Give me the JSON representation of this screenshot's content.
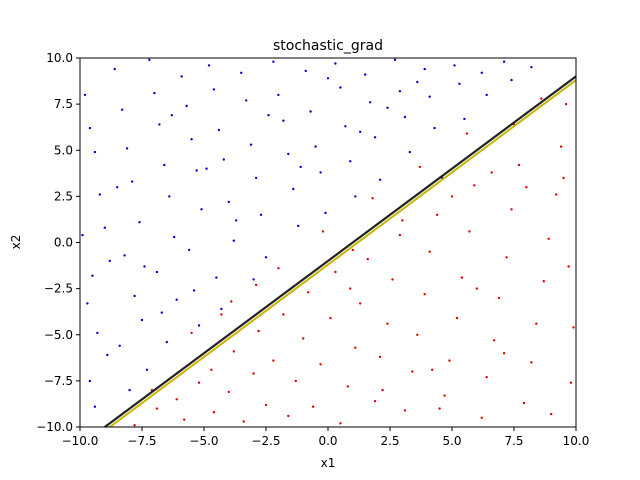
{
  "chart_data": {
    "type": "scatter",
    "title": "stochastic_grad",
    "xlabel": "x1",
    "ylabel": "x2",
    "xlim": [
      -10,
      10
    ],
    "ylim": [
      -10,
      10
    ],
    "xticks": [
      -10,
      -7.5,
      -5,
      -2.5,
      0,
      2.5,
      5,
      7.5,
      10
    ],
    "yticks": [
      -10,
      -7.5,
      -5,
      -2.5,
      0,
      2.5,
      5,
      7.5,
      10
    ],
    "xtick_labels": [
      "−10.0",
      "−7.5",
      "−5.0",
      "−2.5",
      "0.0",
      "2.5",
      "5.0",
      "7.5",
      "10.0"
    ],
    "ytick_labels": [
      "−10.0",
      "−7.5",
      "−5.0",
      "−2.5",
      "0.0",
      "2.5",
      "5.0",
      "7.5",
      "10.0"
    ],
    "grid": false,
    "colors": {
      "class_above": "#0000cc",
      "class_below": "#dd0000",
      "boundary_dark": "#222222",
      "boundary_line": "#c8b400"
    },
    "boundary_lines": [
      {
        "color": "#222222",
        "x1": -9.0,
        "y1": -10.0,
        "x2": 10.0,
        "y2": 9.0
      },
      {
        "color": "#c8b400",
        "x1": -8.8,
        "y1": -10.0,
        "x2": 10.0,
        "y2": 8.8
      }
    ],
    "series": [
      {
        "color": "#0000cc",
        "points": [
          [
            -9.8,
            8.0
          ],
          [
            -9.6,
            6.2
          ],
          [
            -9.4,
            4.9
          ],
          [
            -9.2,
            2.6
          ],
          [
            -9.0,
            0.8
          ],
          [
            -8.8,
            -1.0
          ],
          [
            -9.5,
            -1.8
          ],
          [
            -9.7,
            -3.3
          ],
          [
            -9.3,
            -4.9
          ],
          [
            -8.9,
            -6.1
          ],
          [
            -9.6,
            -7.5
          ],
          [
            -9.4,
            -8.9
          ],
          [
            -8.6,
            9.4
          ],
          [
            -8.3,
            7.2
          ],
          [
            -8.1,
            5.1
          ],
          [
            -7.9,
            3.3
          ],
          [
            -7.6,
            1.1
          ],
          [
            -8.2,
            -0.7
          ],
          [
            -7.8,
            -2.9
          ],
          [
            -7.5,
            -4.2
          ],
          [
            -8.4,
            -5.6
          ],
          [
            -8.0,
            -8.0
          ],
          [
            -7.2,
            9.9
          ],
          [
            -7.0,
            8.1
          ],
          [
            -6.8,
            6.4
          ],
          [
            -6.6,
            4.2
          ],
          [
            -6.4,
            2.5
          ],
          [
            -6.2,
            0.3
          ],
          [
            -6.9,
            -1.6
          ],
          [
            -6.7,
            -3.8
          ],
          [
            -6.5,
            -5.4
          ],
          [
            -7.3,
            -6.9
          ],
          [
            -5.9,
            9.0
          ],
          [
            -5.7,
            7.4
          ],
          [
            -5.5,
            5.6
          ],
          [
            -5.3,
            3.9
          ],
          [
            -5.1,
            1.8
          ],
          [
            -5.6,
            -0.4
          ],
          [
            -5.4,
            -2.6
          ],
          [
            -5.2,
            -4.5
          ],
          [
            -6.1,
            -3.1
          ],
          [
            -4.8,
            9.6
          ],
          [
            -4.6,
            8.3
          ],
          [
            -4.4,
            6.1
          ],
          [
            -4.2,
            4.5
          ],
          [
            -4.0,
            2.2
          ],
          [
            -3.8,
            0.1
          ],
          [
            -4.5,
            -1.9
          ],
          [
            -4.3,
            -3.6
          ],
          [
            -3.5,
            9.2
          ],
          [
            -3.3,
            7.7
          ],
          [
            -3.1,
            5.3
          ],
          [
            -2.9,
            3.5
          ],
          [
            -2.7,
            1.5
          ],
          [
            -2.5,
            -0.8
          ],
          [
            -3.0,
            -2.0
          ],
          [
            -2.2,
            9.8
          ],
          [
            -2.0,
            8.0
          ],
          [
            -1.8,
            6.6
          ],
          [
            -1.6,
            4.8
          ],
          [
            -1.4,
            2.9
          ],
          [
            -1.2,
            0.9
          ],
          [
            -0.9,
            9.3
          ],
          [
            -0.7,
            7.1
          ],
          [
            -0.5,
            5.2
          ],
          [
            -0.3,
            3.8
          ],
          [
            -0.1,
            1.6
          ],
          [
            0.3,
            9.7
          ],
          [
            0.5,
            8.4
          ],
          [
            0.7,
            6.3
          ],
          [
            0.9,
            4.4
          ],
          [
            1.1,
            2.5
          ],
          [
            1.5,
            9.1
          ],
          [
            1.7,
            7.6
          ],
          [
            1.9,
            5.7
          ],
          [
            2.1,
            3.4
          ],
          [
            2.7,
            9.9
          ],
          [
            2.9,
            8.2
          ],
          [
            3.1,
            6.8
          ],
          [
            3.3,
            4.9
          ],
          [
            3.9,
            9.4
          ],
          [
            4.1,
            7.9
          ],
          [
            4.3,
            6.2
          ],
          [
            4.6,
            3.5
          ],
          [
            5.1,
            9.6
          ],
          [
            5.3,
            8.6
          ],
          [
            5.5,
            6.7
          ],
          [
            6.2,
            9.2
          ],
          [
            6.4,
            8.0
          ],
          [
            7.1,
            9.8
          ],
          [
            7.4,
            8.8
          ],
          [
            8.2,
            9.5
          ],
          [
            -9.9,
            0.4
          ],
          [
            -8.5,
            3.0
          ],
          [
            -7.4,
            -1.3
          ],
          [
            -6.3,
            6.9
          ],
          [
            -4.9,
            4.0
          ],
          [
            -3.7,
            1.2
          ],
          [
            -2.4,
            6.9
          ],
          [
            -1.1,
            4.1
          ],
          [
            0.0,
            8.9
          ],
          [
            1.3,
            6.0
          ],
          [
            2.4,
            7.3
          ],
          [
            3.6,
            8.7
          ]
        ]
      },
      {
        "color": "#dd0000",
        "points": [
          [
            -7.8,
            -9.9
          ],
          [
            -6.9,
            -9.0
          ],
          [
            -6.1,
            -8.5
          ],
          [
            -5.8,
            -9.6
          ],
          [
            -5.2,
            -7.6
          ],
          [
            -4.7,
            -6.9
          ],
          [
            -4.6,
            -9.2
          ],
          [
            -4.0,
            -8.1
          ],
          [
            -3.8,
            -5.9
          ],
          [
            -3.4,
            -9.7
          ],
          [
            -3.0,
            -7.1
          ],
          [
            -2.8,
            -4.8
          ],
          [
            -2.5,
            -8.8
          ],
          [
            -2.2,
            -6.4
          ],
          [
            -1.8,
            -3.9
          ],
          [
            -1.6,
            -9.4
          ],
          [
            -1.3,
            -7.5
          ],
          [
            -1.0,
            -5.2
          ],
          [
            -0.8,
            -2.7
          ],
          [
            -0.6,
            -8.9
          ],
          [
            -0.3,
            -6.6
          ],
          [
            0.1,
            -4.1
          ],
          [
            0.3,
            -1.6
          ],
          [
            0.5,
            -9.8
          ],
          [
            0.8,
            -7.8
          ],
          [
            1.1,
            -5.7
          ],
          [
            1.3,
            -3.3
          ],
          [
            1.6,
            -0.9
          ],
          [
            1.9,
            -8.6
          ],
          [
            2.1,
            -6.2
          ],
          [
            2.4,
            -4.4
          ],
          [
            2.6,
            -2.0
          ],
          [
            2.9,
            0.4
          ],
          [
            3.1,
            -9.1
          ],
          [
            3.4,
            -7.0
          ],
          [
            3.6,
            -5.0
          ],
          [
            3.9,
            -2.8
          ],
          [
            4.1,
            -0.5
          ],
          [
            4.4,
            1.5
          ],
          [
            4.7,
            -8.3
          ],
          [
            4.9,
            -6.4
          ],
          [
            5.2,
            -4.1
          ],
          [
            5.4,
            -1.9
          ],
          [
            5.7,
            0.6
          ],
          [
            5.9,
            3.1
          ],
          [
            6.2,
            -9.5
          ],
          [
            6.4,
            -7.3
          ],
          [
            6.7,
            -5.3
          ],
          [
            6.9,
            -3.0
          ],
          [
            7.2,
            -0.8
          ],
          [
            7.4,
            1.8
          ],
          [
            7.7,
            4.2
          ],
          [
            7.9,
            -8.7
          ],
          [
            8.2,
            -6.5
          ],
          [
            8.4,
            -4.4
          ],
          [
            8.7,
            -2.1
          ],
          [
            8.9,
            0.2
          ],
          [
            9.2,
            2.6
          ],
          [
            9.4,
            5.2
          ],
          [
            9.6,
            7.5
          ],
          [
            9.8,
            -7.6
          ],
          [
            9.9,
            -4.6
          ],
          [
            9.7,
            -1.3
          ],
          [
            9.5,
            3.5
          ],
          [
            -3.9,
            -3.2
          ],
          [
            -2.0,
            -1.4
          ],
          [
            -0.2,
            0.6
          ],
          [
            1.8,
            2.4
          ],
          [
            3.7,
            4.1
          ],
          [
            5.6,
            5.9
          ],
          [
            7.5,
            6.4
          ],
          [
            8.6,
            7.8
          ],
          [
            -5.5,
            -4.9
          ],
          [
            -4.3,
            -3.9
          ],
          [
            0.9,
            -2.5
          ],
          [
            2.2,
            -8.0
          ],
          [
            4.2,
            -6.9
          ],
          [
            6.0,
            -2.5
          ],
          [
            8.0,
            3.0
          ],
          [
            9.0,
            -9.3
          ],
          [
            -7.1,
            -8.0
          ],
          [
            -2.9,
            -2.3
          ],
          [
            1.0,
            -0.4
          ],
          [
            3.0,
            1.2
          ],
          [
            5.0,
            2.5
          ],
          [
            6.6,
            3.8
          ],
          [
            7.1,
            -6.0
          ],
          [
            4.5,
            -9.0
          ]
        ]
      }
    ]
  }
}
